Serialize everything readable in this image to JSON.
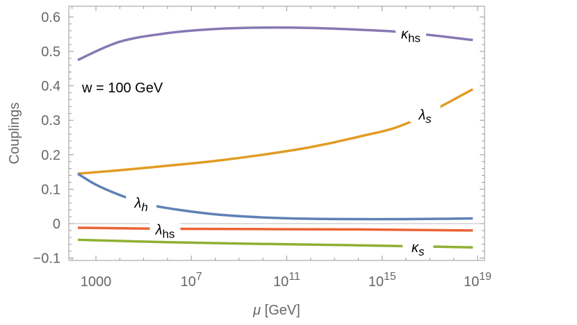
{
  "chart_data": {
    "type": "line",
    "title": "",
    "xlabel": "μ [GeV]",
    "ylabel": "Couplings",
    "xscale": "log",
    "xlim_log10": [
      1.5,
      19.3
    ],
    "ylim": [
      -0.106,
      0.632
    ],
    "xticks": [
      {
        "exp": 3,
        "label": "1000"
      },
      {
        "exp": 7,
        "label": "10",
        "sup": "7"
      },
      {
        "exp": 11,
        "label": "10",
        "sup": "11"
      },
      {
        "exp": 15,
        "label": "10",
        "sup": "15"
      },
      {
        "exp": 19,
        "label": "10",
        "sup": "19"
      }
    ],
    "yticks": [
      {
        "v": 0.6,
        "label": "0.6"
      },
      {
        "v": 0.5,
        "label": "0.5"
      },
      {
        "v": 0.4,
        "label": "0.4"
      },
      {
        "v": 0.3,
        "label": "0.3"
      },
      {
        "v": 0.2,
        "label": "0.2"
      },
      {
        "v": 0.1,
        "label": "0.1"
      },
      {
        "v": 0,
        "label": "0"
      },
      {
        "v": -0.1,
        "label": "-0.1"
      }
    ],
    "grid": false,
    "zero_line": true,
    "annotation": "w = 100 GeV",
    "series": [
      {
        "name": "κhs",
        "color": "#8778B3",
        "log10_mu": [
          2.24,
          4,
          6,
          8,
          10,
          12,
          14,
          16,
          18.8
        ],
        "values": [
          0.475,
          0.528,
          0.553,
          0.565,
          0.569,
          0.568,
          0.563,
          0.555,
          0.533
        ],
        "label_at": 16.2
      },
      {
        "name": "λs",
        "color": "#E19C24",
        "log10_mu": [
          2.24,
          4,
          6,
          8,
          10,
          12,
          14,
          16,
          18.8
        ],
        "values": [
          0.145,
          0.155,
          0.168,
          0.182,
          0.2,
          0.222,
          0.252,
          0.29,
          0.39
        ],
        "label_at": 16.8
      },
      {
        "name": "λh",
        "color": "#5E81B5",
        "log10_mu": [
          2.24,
          3,
          4,
          5,
          6,
          8,
          10,
          12,
          14,
          16,
          18.8
        ],
        "values": [
          0.145,
          0.113,
          0.083,
          0.06,
          0.045,
          0.027,
          0.018,
          0.014,
          0.013,
          0.013,
          0.015
        ],
        "label_at": 4.9
      },
      {
        "name": "λhs",
        "color": "#EB6235",
        "log10_mu": [
          2.24,
          6,
          10,
          14,
          18.8
        ],
        "values": [
          -0.012,
          -0.015,
          -0.016,
          -0.017,
          -0.02
        ],
        "label_at": 5.9
      },
      {
        "name": "κs",
        "color": "#8FB032",
        "log10_mu": [
          2.24,
          6,
          10,
          14,
          18.8
        ],
        "values": [
          -0.047,
          -0.054,
          -0.059,
          -0.063,
          -0.069
        ],
        "label_at": 16.5
      }
    ]
  }
}
